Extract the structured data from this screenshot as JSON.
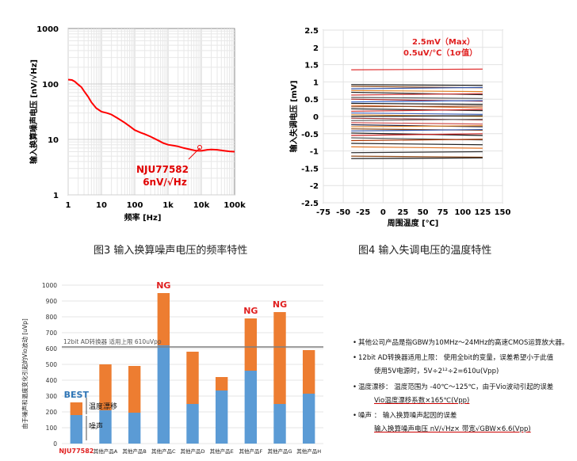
{
  "chart_data": [
    {
      "type": "line",
      "title": "",
      "xlabel": "频率 [Hz]",
      "ylabel": "输入换算噪声电压 [nV/√Hz]",
      "xscale": "log",
      "yscale": "log",
      "xlim": [
        1,
        100000
      ],
      "ylim": [
        1,
        1000
      ],
      "x_ticks": [
        "1",
        "10",
        "100",
        "1k",
        "10k",
        "100k"
      ],
      "y_ticks": [
        "1",
        "10",
        "100",
        "1000"
      ],
      "grid": true,
      "line_color": "#ff0000",
      "series": [
        {
          "name": "NJU77582",
          "x": [
            1,
            1.3,
            1.6,
            2,
            2.5,
            3,
            4,
            5,
            7,
            10,
            15,
            20,
            30,
            50,
            70,
            100,
            150,
            200,
            300,
            500,
            700,
            1000,
            1500,
            2000,
            3000,
            5000,
            7000,
            10000,
            15000,
            20000,
            30000,
            50000,
            70000,
            100000
          ],
          "y": [
            120,
            118,
            110,
            98,
            85,
            72,
            58,
            48,
            38,
            32,
            29,
            27,
            24,
            20.5,
            18,
            15,
            13,
            12,
            11,
            9.8,
            9,
            8.2,
            7.6,
            7.2,
            6.8,
            6.6,
            6.5,
            6.4,
            6.45,
            6.35,
            6.3,
            6.25,
            6.3,
            6.2
          ]
        }
      ],
      "annotations": [
        "NJU77582",
        "6nV/√Hz"
      ]
    },
    {
      "type": "line",
      "title": "",
      "xlabel": "周围温度 [℃]",
      "ylabel": "输入失调电压 [mV]",
      "xlim": [
        -75,
        150
      ],
      "ylim": [
        -2.5,
        2.5
      ],
      "x_ticks": [
        "-75",
        "-50",
        "-25",
        "0",
        "25",
        "50",
        "75",
        "100",
        "125",
        "150"
      ],
      "y_ticks": [
        "2.5",
        "2",
        "1.5",
        "1",
        "0.5",
        "0",
        "-0.5",
        "-1",
        "-1.5",
        "-2",
        "-2.5"
      ],
      "grid": true,
      "data_x_range": [
        -40,
        125
      ],
      "annotations": [
        "2.5mV（Max）",
        "0.5uV/℃（1σ值）"
      ],
      "annotation_color": "#e02020",
      "series": [
        {
          "x": [
            -40,
            125
          ],
          "y": [
            1.35,
            1.37
          ],
          "color": "#e03030"
        },
        {
          "x": [
            -40,
            125
          ],
          "y": [
            0.92,
            0.9
          ],
          "color": "#1a1a1a"
        },
        {
          "x": [
            -40,
            125
          ],
          "y": [
            0.87,
            0.83
          ],
          "color": "#8b4513"
        },
        {
          "x": [
            -40,
            125
          ],
          "y": [
            0.8,
            0.84
          ],
          "color": "#3355aa"
        },
        {
          "x": [
            -40,
            125
          ],
          "y": [
            0.75,
            0.72
          ],
          "color": "#e08020"
        },
        {
          "x": [
            -40,
            125
          ],
          "y": [
            0.7,
            0.63
          ],
          "color": "#222222"
        },
        {
          "x": [
            -40,
            125
          ],
          "y": [
            0.62,
            0.66
          ],
          "color": "#d04040"
        },
        {
          "x": [
            -40,
            125
          ],
          "y": [
            0.55,
            0.52
          ],
          "color": "#555555"
        },
        {
          "x": [
            -40,
            125
          ],
          "y": [
            0.5,
            0.44
          ],
          "color": "#aa2222"
        },
        {
          "x": [
            -40,
            125
          ],
          "y": [
            0.42,
            0.46
          ],
          "color": "#3366cc"
        },
        {
          "x": [
            -40,
            125
          ],
          "y": [
            0.38,
            0.35
          ],
          "color": "#111111"
        },
        {
          "x": [
            -40,
            125
          ],
          "y": [
            0.32,
            0.25
          ],
          "color": "#e07030"
        },
        {
          "x": [
            -40,
            125
          ],
          "y": [
            0.28,
            0.3
          ],
          "color": "#884422"
        },
        {
          "x": [
            -40,
            125
          ],
          "y": [
            0.22,
            0.17
          ],
          "color": "#2a2a2a"
        },
        {
          "x": [
            -40,
            125
          ],
          "y": [
            0.15,
            0.2
          ],
          "color": "#cc3333"
        },
        {
          "x": [
            -40,
            125
          ],
          "y": [
            0.1,
            0.06
          ],
          "color": "#4466bb"
        },
        {
          "x": [
            -40,
            125
          ],
          "y": [
            0.05,
            0.0
          ],
          "color": "#e09030"
        },
        {
          "x": [
            -40,
            125
          ],
          "y": [
            0.0,
            0.02
          ],
          "color": "#1a1a1a"
        },
        {
          "x": [
            -40,
            125
          ],
          "y": [
            -0.05,
            -0.1
          ],
          "color": "#993333"
        },
        {
          "x": [
            -40,
            125
          ],
          "y": [
            -0.12,
            -0.08
          ],
          "color": "#666666"
        },
        {
          "x": [
            -40,
            125
          ],
          "y": [
            -0.18,
            -0.22
          ],
          "color": "#d05050"
        },
        {
          "x": [
            -40,
            125
          ],
          "y": [
            -0.24,
            -0.3
          ],
          "color": "#222244"
        },
        {
          "x": [
            -40,
            125
          ],
          "y": [
            -0.3,
            -0.27
          ],
          "color": "#e08020"
        },
        {
          "x": [
            -40,
            125
          ],
          "y": [
            -0.36,
            -0.4
          ],
          "color": "#8b4513"
        },
        {
          "x": [
            -40,
            125
          ],
          "y": [
            -0.42,
            -0.38
          ],
          "color": "#3355aa"
        },
        {
          "x": [
            -40,
            125
          ],
          "y": [
            -0.48,
            -0.55
          ],
          "color": "#111111"
        },
        {
          "x": [
            -40,
            125
          ],
          "y": [
            -0.55,
            -0.5
          ],
          "color": "#cc2222"
        },
        {
          "x": [
            -40,
            125
          ],
          "y": [
            -0.62,
            -0.68
          ],
          "color": "#555555"
        },
        {
          "x": [
            -40,
            125
          ],
          "y": [
            -0.7,
            -0.66
          ],
          "color": "#aa3300"
        },
        {
          "x": [
            -40,
            125
          ],
          "y": [
            -0.78,
            -0.82
          ],
          "color": "#222222"
        },
        {
          "x": [
            -40,
            125
          ],
          "y": [
            -0.88,
            -0.92
          ],
          "color": "#e07020"
        },
        {
          "x": [
            -40,
            125
          ],
          "y": [
            -1.05,
            -1.02
          ],
          "color": "#333333"
        },
        {
          "x": [
            -40,
            125
          ],
          "y": [
            -1.15,
            -1.18
          ],
          "color": "#8b4513"
        },
        {
          "x": [
            -40,
            125
          ],
          "y": [
            -1.22,
            -1.2
          ],
          "color": "#111111"
        }
      ]
    },
    {
      "type": "bar",
      "stacked": true,
      "title": "",
      "xlabel": "",
      "ylabel": "由于噪声和温度变化引起的Vio波动 [uVp]",
      "ylim": [
        0,
        1000
      ],
      "y_ticks": [
        "0",
        "100",
        "200",
        "300",
        "400",
        "500",
        "600",
        "700",
        "800",
        "900",
        "1000"
      ],
      "grid": true,
      "categories": [
        "NJU77582",
        "其他产品A",
        "其他产品B",
        "其他产品C",
        "其他产品D",
        "其他产品E",
        "其他产品F",
        "其他产品G",
        "其他产品H"
      ],
      "series": [
        {
          "name": "噪声",
          "color": "#5b9bd5",
          "values": [
            180,
            210,
            195,
            620,
            250,
            335,
            460,
            250,
            315
          ]
        },
        {
          "name": "温度漂移",
          "color": "#ed7d31",
          "values": [
            80,
            290,
            295,
            330,
            330,
            85,
            330,
            580,
            275
          ]
        }
      ],
      "reference_line": {
        "value": 610,
        "label": "12bit AD转换器 适用上限 610uVpp",
        "color": "#7f7f7f"
      },
      "bar_labels": [
        "BEST",
        "",
        "",
        "NG",
        "",
        "",
        "NG",
        "NG",
        ""
      ],
      "label_colors": {
        "best": "#2e75b6",
        "ng": "#e02020",
        "highlight_category": "#e02020"
      }
    }
  ],
  "captions": {
    "fig3": "图3  输入换算噪声电压的频率特性",
    "fig4": "图4  输入失调电压的温度特性"
  },
  "notes": [
    {
      "bullet": "•",
      "text": "其他公司产品是指GBW为10MHz～24MHz的高速CMOS运算放大器。",
      "cont": ""
    },
    {
      "bullet": "•",
      "text": "12bit AD转换器适用上限： 使用全bit的变量，误差希望小于此值",
      "cont": "使用5V电源时，5V÷2¹²÷2=610u(Vpp)"
    },
    {
      "bullet": "•",
      "text": "温度漂移： 温度范围为 -40℃～125℃，由于Vio波动引起的误差",
      "cont": "Vio温度漂移系数×165℃(Vpp)"
    },
    {
      "bullet": "•",
      "text": "噪声 ： 输入换算噪声起因的误差",
      "cont": "输入换算噪声电压 nV/√Hz× 带宽√GBW×6.6(Vpp)"
    }
  ]
}
